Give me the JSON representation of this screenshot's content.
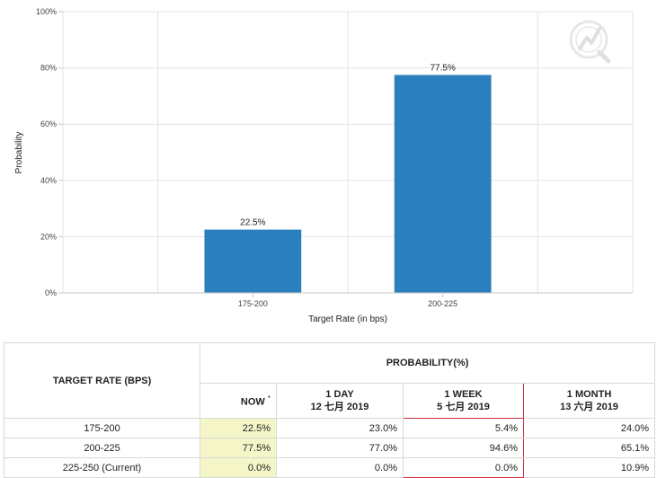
{
  "chart_data": {
    "type": "bar",
    "categories": [
      "175-200",
      "200-225"
    ],
    "values": [
      22.5,
      77.5
    ],
    "data_labels": [
      "22.5%",
      "77.5%"
    ],
    "xlabel": "Target Rate (in bps)",
    "ylabel": "Probability",
    "ylim": [
      0,
      100
    ],
    "yticks": [
      "0%",
      "20%",
      "40%",
      "60%",
      "80%",
      "100%"
    ],
    "ytick_values": [
      0,
      20,
      40,
      60,
      80,
      100
    ],
    "grid": true,
    "bar_color": "#2a7fbc",
    "watermark": "logo-icon"
  },
  "table": {
    "target_header": "TARGET RATE (BPS)",
    "group_header": "PROBABILITY(%)",
    "columns": [
      {
        "line1": "NOW",
        "sup": "*",
        "line2": ""
      },
      {
        "line1": "1 DAY",
        "line2": "12 七月 2019"
      },
      {
        "line1": "1 WEEK",
        "line2": "5 七月 2019"
      },
      {
        "line1": "1 MONTH",
        "line2": "13 六月 2019"
      }
    ],
    "rows": [
      {
        "rate": "175-200",
        "values": [
          "22.5%",
          "23.0%",
          "5.4%",
          "24.0%"
        ]
      },
      {
        "rate": "200-225",
        "values": [
          "77.5%",
          "77.0%",
          "94.6%",
          "65.1%"
        ]
      },
      {
        "rate": "225-250 (Current)",
        "values": [
          "0.0%",
          "0.0%",
          "0.0%",
          "10.9%"
        ]
      }
    ],
    "now_highlight_color": "#f5f6c8",
    "highlight_border_color": "#d0303a"
  }
}
